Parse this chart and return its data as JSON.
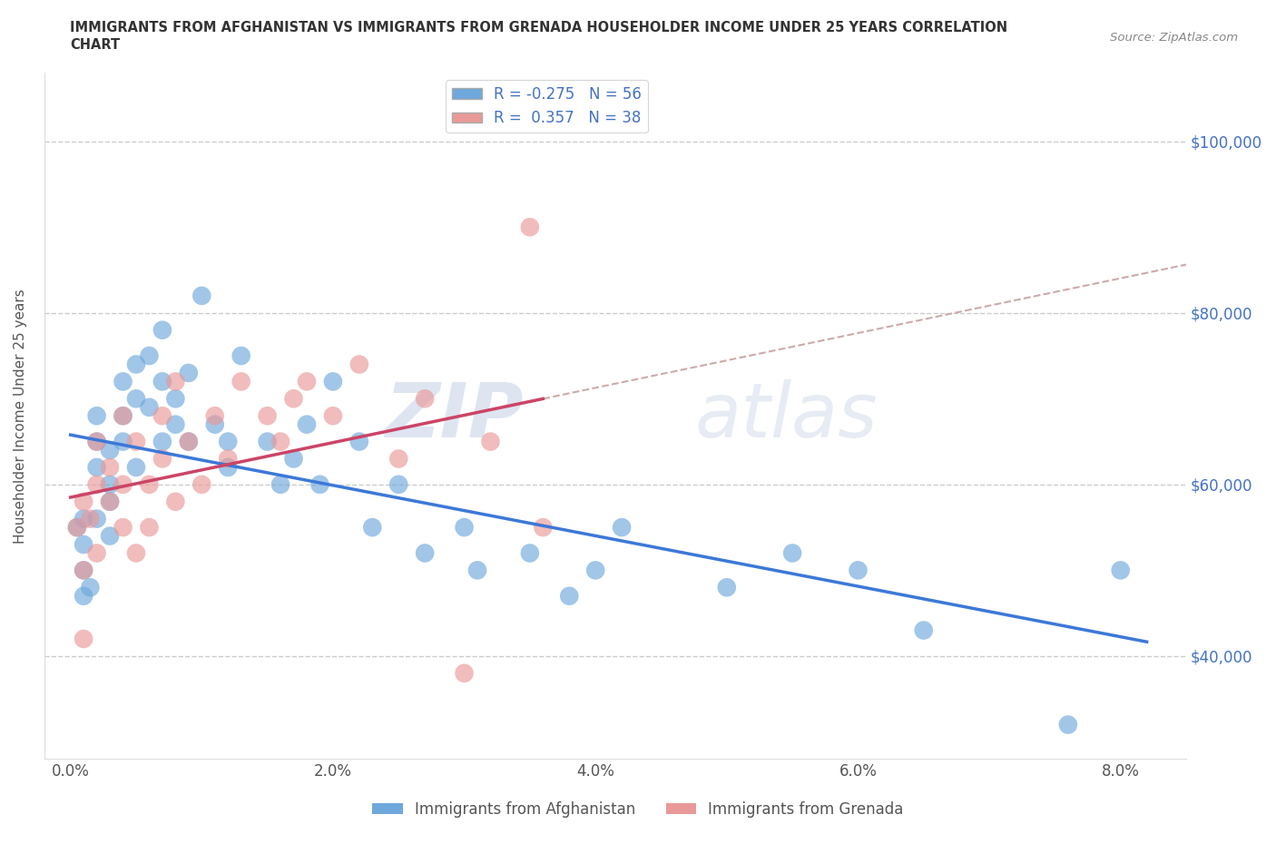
{
  "title_line1": "IMMIGRANTS FROM AFGHANISTAN VS IMMIGRANTS FROM GRENADA HOUSEHOLDER INCOME UNDER 25 YEARS CORRELATION",
  "title_line2": "CHART",
  "source": "Source: ZipAtlas.com",
  "ylabel": "Householder Income Under 25 years",
  "xlabel_ticks": [
    "0.0%",
    "2.0%",
    "4.0%",
    "6.0%",
    "8.0%"
  ],
  "xlabel_vals": [
    0.0,
    0.02,
    0.04,
    0.06,
    0.08
  ],
  "ylabel_ticks": [
    "$40,000",
    "$60,000",
    "$80,000",
    "$100,000"
  ],
  "ylabel_vals": [
    40000,
    60000,
    80000,
    100000
  ],
  "xlim": [
    -0.002,
    0.085
  ],
  "ylim": [
    28000,
    108000
  ],
  "afghanistan_R": -0.275,
  "afghanistan_N": 56,
  "grenada_R": 0.357,
  "grenada_N": 38,
  "afghanistan_color": "#6fa8dc",
  "grenada_color": "#ea9999",
  "afghanistan_line_color": "#3c78d8",
  "grenada_line_color": "#cc4466",
  "dashed_color": "#ccaaaa",
  "afghanistan_x": [
    0.0005,
    0.001,
    0.001,
    0.001,
    0.001,
    0.0015,
    0.002,
    0.002,
    0.002,
    0.002,
    0.003,
    0.003,
    0.003,
    0.003,
    0.004,
    0.004,
    0.004,
    0.005,
    0.005,
    0.005,
    0.006,
    0.006,
    0.007,
    0.007,
    0.007,
    0.008,
    0.008,
    0.009,
    0.009,
    0.01,
    0.011,
    0.012,
    0.012,
    0.013,
    0.015,
    0.016,
    0.017,
    0.018,
    0.019,
    0.02,
    0.022,
    0.023,
    0.025,
    0.027,
    0.03,
    0.031,
    0.035,
    0.038,
    0.04,
    0.042,
    0.05,
    0.055,
    0.06,
    0.065,
    0.076,
    0.08
  ],
  "afghanistan_y": [
    55000,
    47000,
    50000,
    53000,
    56000,
    48000,
    62000,
    65000,
    68000,
    56000,
    60000,
    64000,
    58000,
    54000,
    72000,
    68000,
    65000,
    74000,
    70000,
    62000,
    75000,
    69000,
    78000,
    72000,
    65000,
    67000,
    70000,
    73000,
    65000,
    82000,
    67000,
    62000,
    65000,
    75000,
    65000,
    60000,
    63000,
    67000,
    60000,
    72000,
    65000,
    55000,
    60000,
    52000,
    55000,
    50000,
    52000,
    47000,
    50000,
    55000,
    48000,
    52000,
    50000,
    43000,
    32000,
    50000
  ],
  "grenada_x": [
    0.0005,
    0.001,
    0.001,
    0.001,
    0.0015,
    0.002,
    0.002,
    0.002,
    0.003,
    0.003,
    0.004,
    0.004,
    0.004,
    0.005,
    0.005,
    0.006,
    0.006,
    0.007,
    0.007,
    0.008,
    0.008,
    0.009,
    0.01,
    0.011,
    0.012,
    0.013,
    0.015,
    0.016,
    0.017,
    0.018,
    0.02,
    0.022,
    0.025,
    0.027,
    0.03,
    0.032,
    0.035,
    0.036
  ],
  "grenada_y": [
    55000,
    42000,
    50000,
    58000,
    56000,
    52000,
    60000,
    65000,
    58000,
    62000,
    55000,
    60000,
    68000,
    52000,
    65000,
    60000,
    55000,
    63000,
    68000,
    58000,
    72000,
    65000,
    60000,
    68000,
    63000,
    72000,
    68000,
    65000,
    70000,
    72000,
    68000,
    74000,
    63000,
    70000,
    38000,
    65000,
    90000,
    55000
  ]
}
